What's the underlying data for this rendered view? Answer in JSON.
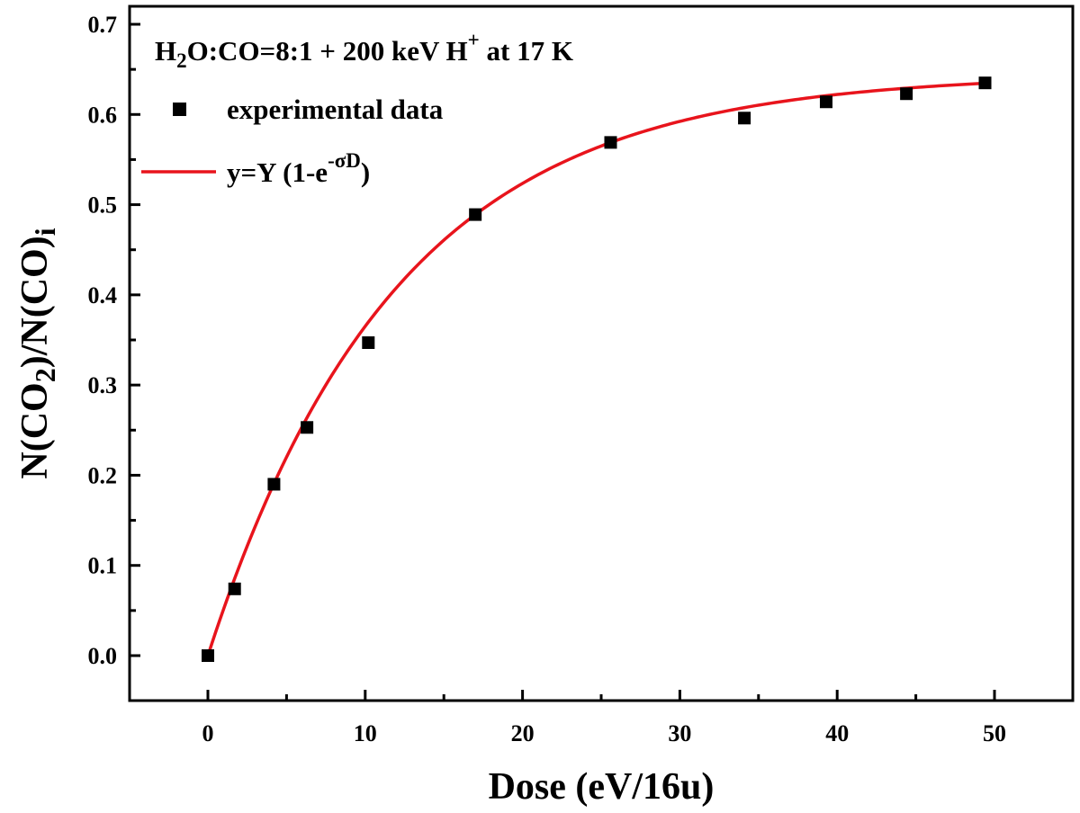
{
  "chart_data": {
    "type": "scatter",
    "title": "",
    "annotation": {
      "prefix_main": "H",
      "prefix_sub": "2",
      "middle": "O:CO=8:1 + 200 keV H",
      "sup": "+",
      "suffix": " at 17 K"
    },
    "xlabel": "Dose (eV/16u)",
    "ylabel": {
      "part1": "N(CO",
      "sub1": "2",
      "part2": ")/N(CO)",
      "sub2": "i"
    },
    "xlim": [
      -5,
      55
    ],
    "ylim": [
      -0.05,
      0.72
    ],
    "xticks": [
      0,
      10,
      20,
      30,
      40,
      50
    ],
    "xtick_labels": [
      "0",
      "10",
      "20",
      "30",
      "40",
      "50"
    ],
    "yticks": [
      0.0,
      0.1,
      0.2,
      0.3,
      0.4,
      0.5,
      0.6,
      0.7
    ],
    "ytick_labels": [
      "0.0",
      "0.1",
      "0.2",
      "0.3",
      "0.4",
      "0.5",
      "0.6",
      "0.7"
    ],
    "grid": false,
    "legend_position": "top-left",
    "series": [
      {
        "name": "experimental data",
        "kind": "scatter",
        "marker": "square",
        "color": "#000000",
        "x": [
          0,
          1.7,
          4.2,
          6.3,
          10.2,
          17.0,
          25.6,
          34.1,
          39.3,
          44.4,
          49.4
        ],
        "y": [
          0.0,
          0.074,
          0.19,
          0.253,
          0.347,
          0.489,
          0.569,
          0.596,
          0.614,
          0.623,
          0.635
        ]
      },
      {
        "name": "y=Y (1-e-σD)",
        "label_parts": {
          "main": "y=Y (1-e",
          "sup": "-σD",
          "end": ")"
        },
        "kind": "line",
        "color": "#e8141c",
        "fit": {
          "Y": 0.645,
          "sigma": 0.0835
        },
        "x_range": [
          0,
          49.4
        ]
      }
    ]
  }
}
